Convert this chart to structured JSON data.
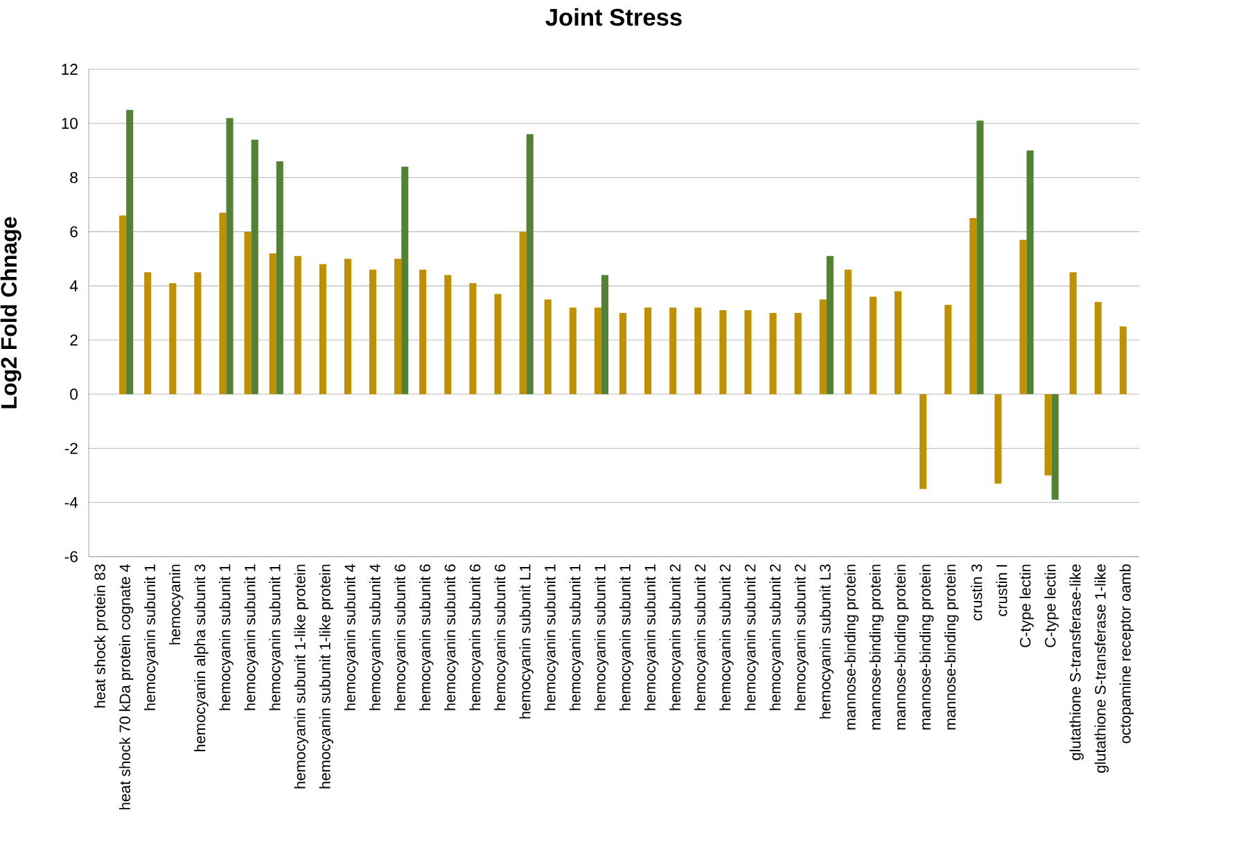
{
  "chart_data": {
    "type": "bar",
    "title": "Joint Stress",
    "ylabel": "Log2 Fold Chnage",
    "categories": [
      "heat shock protein 83",
      "heat shock 70 kDa protein cognate 4",
      "hemocyanin subunit 1",
      "hemocyanin",
      "hemocyanin alpha subunit 3",
      "hemocyanin subunit 1",
      "hemocyanin subunit 1",
      "hemocyanin subunit 1",
      "hemocyanin subunit 1-like protein",
      "hemocyanin subunit 1-like protein",
      "hemocyanin subunit 4",
      "hemocyanin subunit 4",
      "hemocyanin subunit 6",
      "hemocyanin subunit 6",
      "hemocyanin subunit 6",
      "hemocyanin subunit 6",
      "hemocyanin subunit 6",
      "hemocyanin subunit L1",
      "hemocyanin subunit 1",
      "hemocyanin subunit 1",
      "hemocyanin subunit 1",
      "hemocyanin subunit 1",
      "hemocyanin subunit 1",
      "hemocyanin subunit 2",
      "hemocyanin subunit 2",
      "hemocyanin subunit 2",
      "hemocyanin subunit 2",
      "hemocyanin subunit 2",
      "hemocyanin subunit 2",
      "hemocyanin subunit L3",
      "mannose-binding protein",
      "mannose-binding protein",
      "mannose-binding protein",
      "mannose-binding protein",
      "mannose-binding protein",
      "crustin 3",
      "crustin I",
      "C-type lectin",
      "C-type lectin",
      "glutathione S-transferase-like",
      "glutathione S-transferase 1-like",
      "octopamine receptor oamb"
    ],
    "series": [
      {
        "color": "#bf9000",
        "values": [
          null,
          6.6,
          4.5,
          4.1,
          4.5,
          6.7,
          6.0,
          5.2,
          5.1,
          4.8,
          5.0,
          4.6,
          5.0,
          4.6,
          4.4,
          4.1,
          3.7,
          6.0,
          3.5,
          3.2,
          3.2,
          3.0,
          3.2,
          3.2,
          3.2,
          3.1,
          3.1,
          3.0,
          3.0,
          3.5,
          4.6,
          3.6,
          3.8,
          -3.5,
          3.3,
          6.5,
          -3.3,
          5.7,
          -3.0,
          4.5,
          3.4,
          2.5
        ]
      },
      {
        "color": "#548235",
        "values": [
          null,
          10.5,
          null,
          null,
          null,
          10.2,
          9.4,
          8.6,
          null,
          null,
          null,
          null,
          8.4,
          null,
          null,
          null,
          null,
          9.6,
          null,
          null,
          4.4,
          null,
          null,
          null,
          null,
          null,
          null,
          null,
          null,
          5.1,
          null,
          null,
          null,
          null,
          null,
          10.1,
          null,
          9.0,
          -3.9,
          null,
          null,
          null
        ]
      }
    ],
    "ylim": [
      -6,
      12
    ],
    "yticks": [
      -6,
      -4,
      -2,
      0,
      2,
      4,
      6,
      8,
      10,
      12
    ],
    "grid": "y"
  }
}
